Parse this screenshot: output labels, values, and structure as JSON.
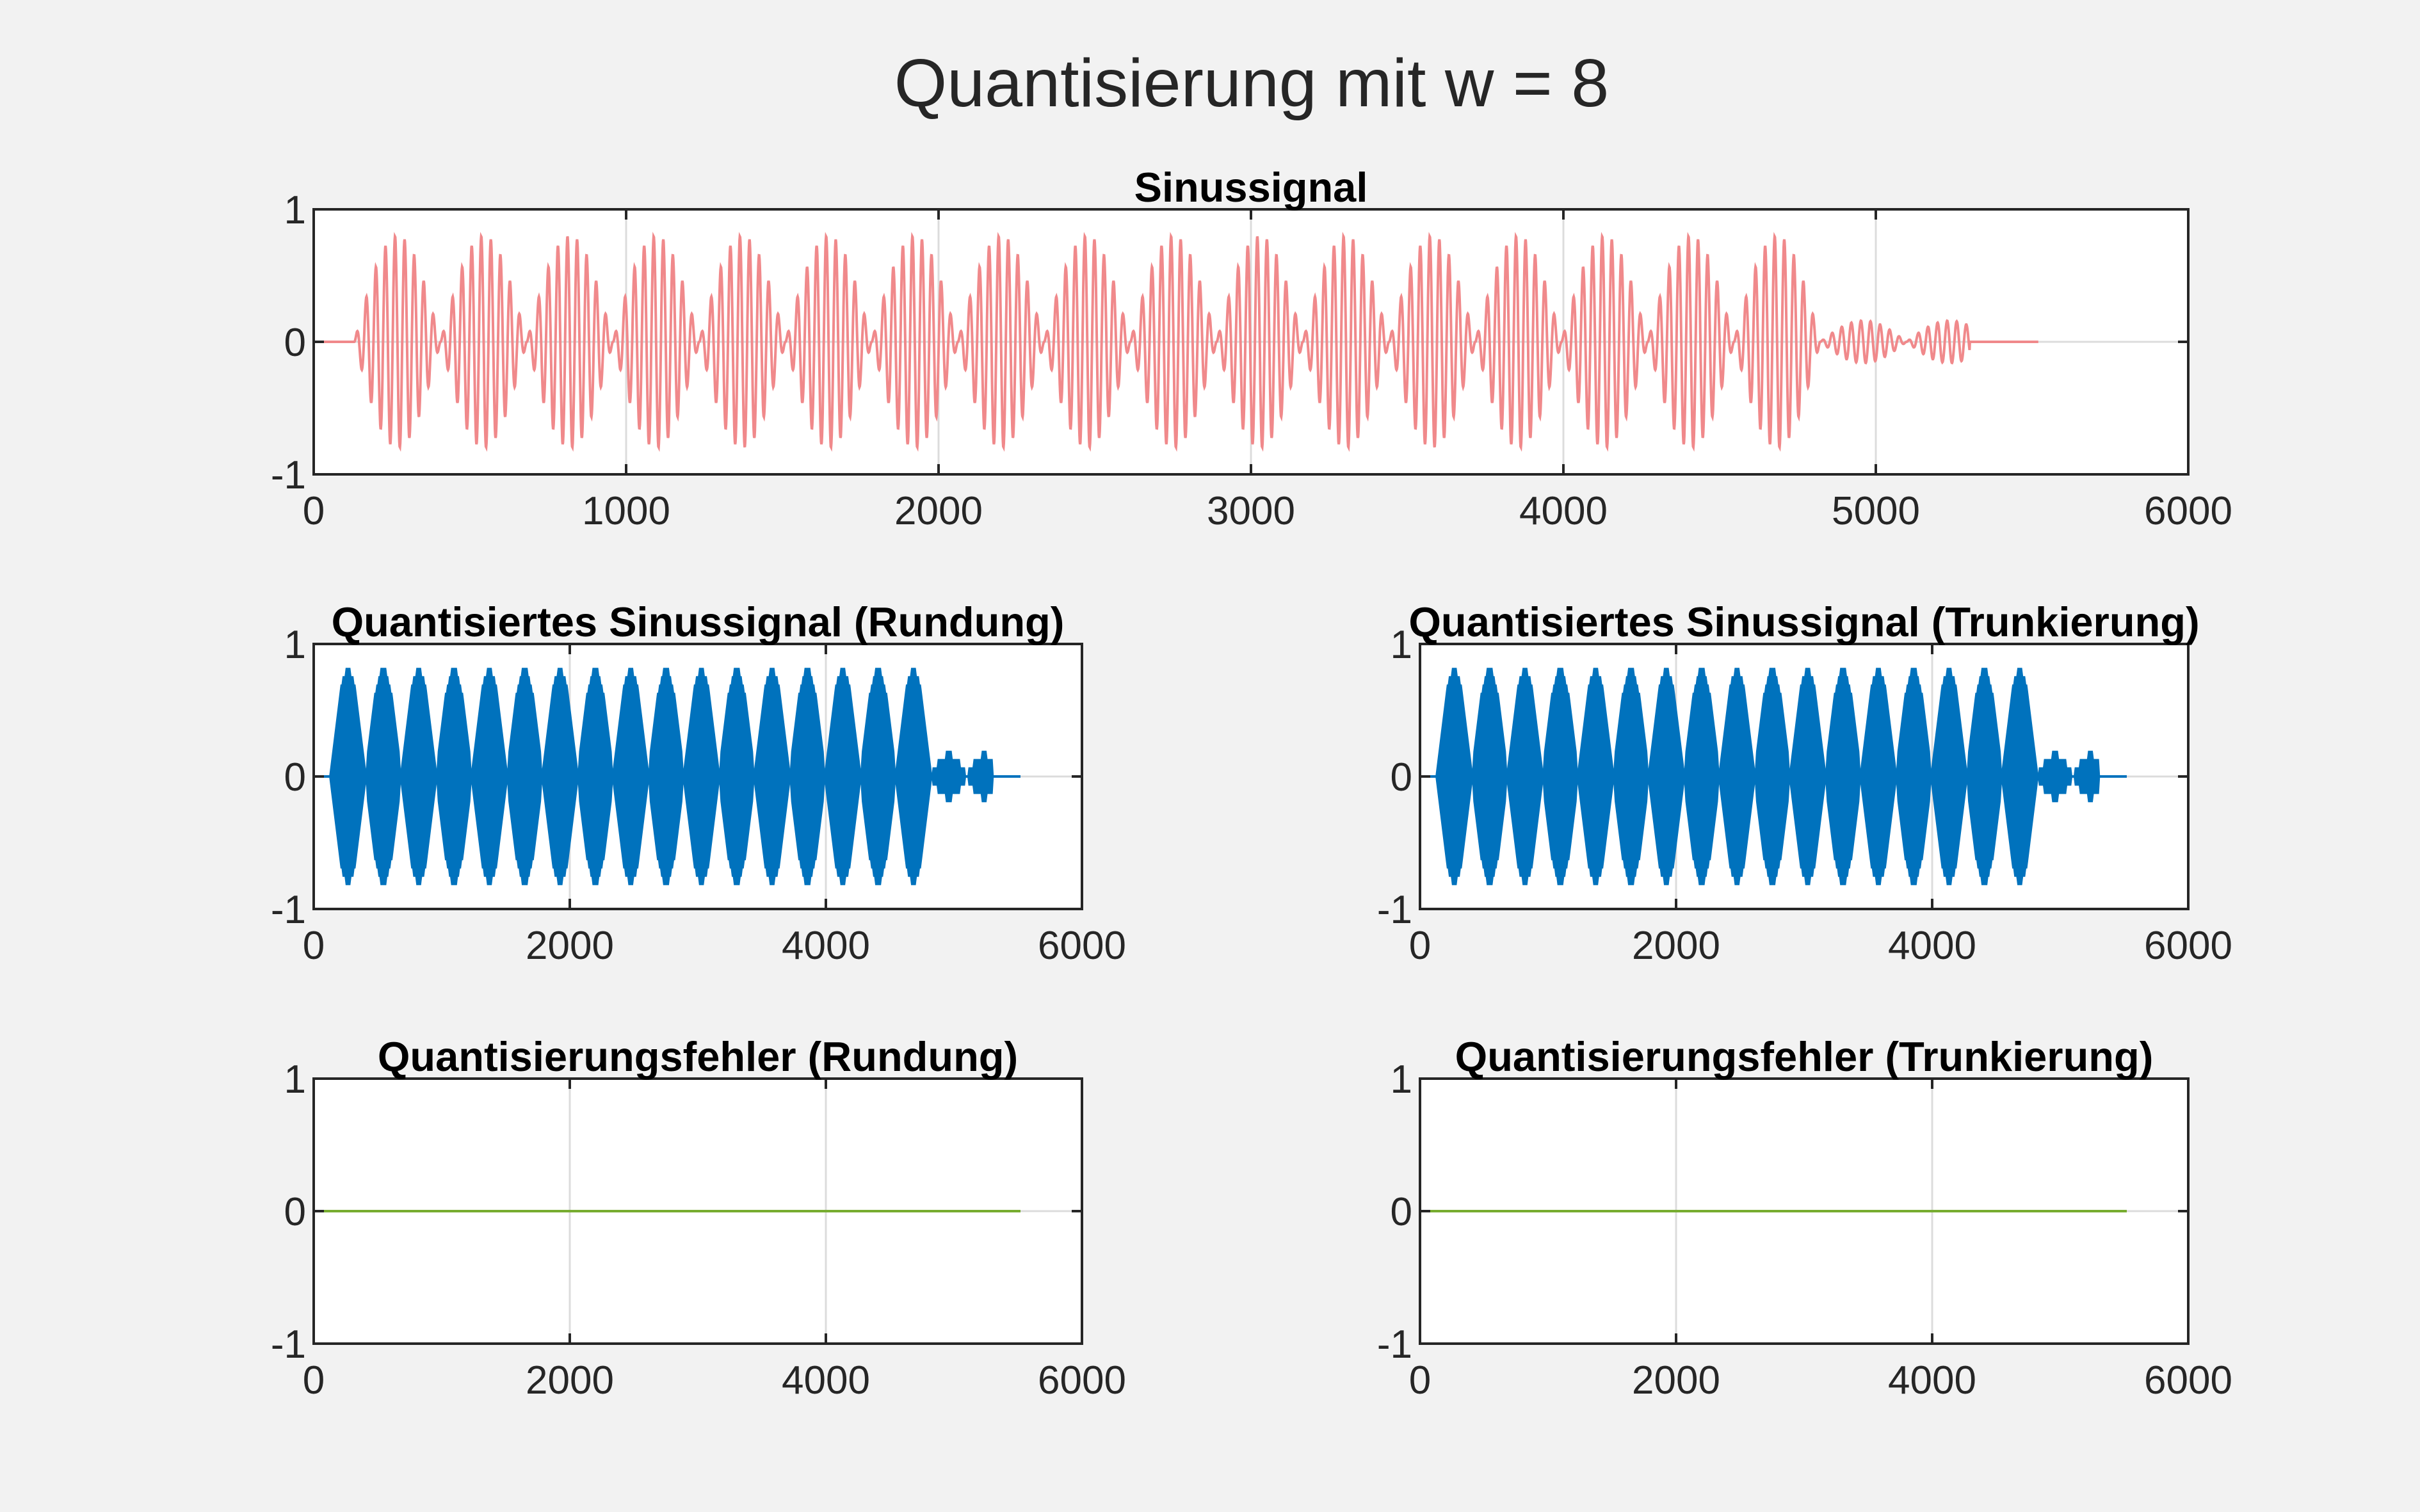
{
  "figure": {
    "suptitle": "Quantisierung mit w = 8",
    "background": "#f2f2f2"
  },
  "colors": {
    "signal": "#f0898b",
    "quantized": "#0072bd",
    "error": "#77ac30",
    "grid": "#dcdcdc",
    "axes": "#262626"
  },
  "chart_data": [
    {
      "id": "sinus",
      "type": "line",
      "title": "Sinussignal",
      "xlim": [
        0,
        6000
      ],
      "ylim": [
        -1,
        1
      ],
      "xticks": [
        0,
        1000,
        2000,
        3000,
        4000,
        5000,
        6000
      ],
      "yticks": [
        -1,
        0,
        1
      ],
      "grid": true,
      "series": [
        {
          "kind": "modulated-sine",
          "color": "#f0898b",
          "x_start": 0,
          "x_end": 5520,
          "burst_start": 130,
          "burst_end": 5300,
          "envelope_period": 276,
          "peak_amplitude": 0.8,
          "carrier_cycles_per_burst": 9,
          "final_burst_amplitude": 0.16
        }
      ]
    },
    {
      "id": "quant-rund",
      "type": "line",
      "title": "Quantisiertes Sinussignal (Rundung)",
      "xlim": [
        0,
        6000
      ],
      "ylim": [
        -1,
        1
      ],
      "xticks": [
        0,
        2000,
        4000,
        6000
      ],
      "yticks": [
        -1,
        0,
        1
      ],
      "grid": true,
      "series": [
        {
          "kind": "modulated-sine-quantized",
          "color": "#0072bd",
          "x_start": 0,
          "x_end": 5520,
          "burst_start": 130,
          "burst_end": 5300,
          "envelope_period": 276,
          "peak_amplitude": 0.8,
          "final_burst_amplitude": 0.16
        }
      ]
    },
    {
      "id": "quant-trunk",
      "type": "line",
      "title": "Quantisiertes Sinussignal (Trunkierung)",
      "xlim": [
        0,
        6000
      ],
      "ylim": [
        -1,
        1
      ],
      "xticks": [
        0,
        2000,
        4000,
        6000
      ],
      "yticks": [
        -1,
        0,
        1
      ],
      "grid": true,
      "series": [
        {
          "kind": "modulated-sine-quantized",
          "color": "#0072bd",
          "x_start": 0,
          "x_end": 5520,
          "burst_start": 130,
          "burst_end": 5300,
          "envelope_period": 276,
          "peak_amplitude": 0.8,
          "final_burst_amplitude": 0.16
        }
      ]
    },
    {
      "id": "fehler-rund",
      "type": "line",
      "title": "Quantisierungsfehler (Rundung)",
      "xlim": [
        0,
        6000
      ],
      "ylim": [
        -1,
        1
      ],
      "xticks": [
        0,
        2000,
        4000,
        6000
      ],
      "yticks": [
        -1,
        0,
        1
      ],
      "grid": true,
      "series": [
        {
          "kind": "constant",
          "color": "#77ac30",
          "x": [
            0,
            5520
          ],
          "y": [
            0,
            0
          ]
        }
      ]
    },
    {
      "id": "fehler-trunk",
      "type": "line",
      "title": "Quantisierungsfehler (Trunkierung)",
      "xlim": [
        0,
        6000
      ],
      "ylim": [
        -1,
        1
      ],
      "xticks": [
        0,
        2000,
        4000,
        6000
      ],
      "yticks": [
        -1,
        0,
        1
      ],
      "grid": true,
      "series": [
        {
          "kind": "constant",
          "color": "#77ac30",
          "x": [
            0,
            5520
          ],
          "y": [
            0,
            0
          ]
        }
      ]
    }
  ]
}
